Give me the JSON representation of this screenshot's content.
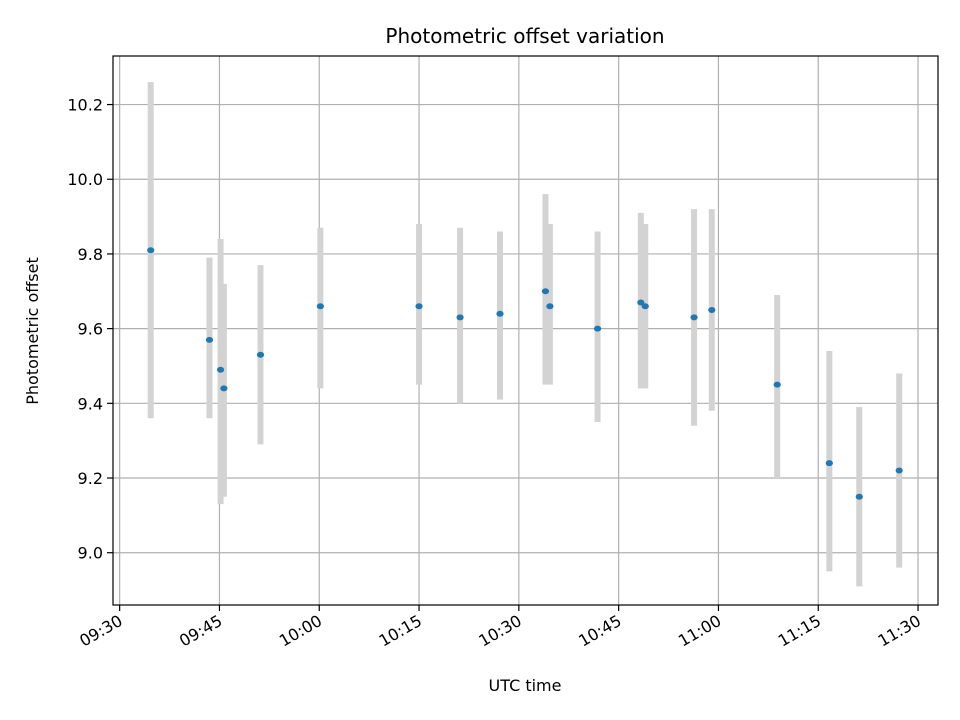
{
  "chart_data": {
    "type": "scatter",
    "title": "Photometric offset variation",
    "xlabel": "UTC time",
    "ylabel": "Photometric offset",
    "x_ticks": [
      "09:30",
      "09:45",
      "10:00",
      "10:15",
      "10:30",
      "10:45",
      "11:00",
      "11:15",
      "11:30"
    ],
    "y_ticks": [
      "9.0",
      "9.2",
      "9.4",
      "9.6",
      "9.8",
      "10.0",
      "10.2"
    ],
    "xlim": [
      "09:29",
      "11:33"
    ],
    "ylim": [
      8.86,
      10.33
    ],
    "grid": true,
    "colors": {
      "point": "#1f77b4",
      "errorbar": "#d3d3d3",
      "grid": "#b0b0b0"
    },
    "series": [
      {
        "points": [
          {
            "x": "09:34:40",
            "y": 9.81,
            "yerr_low": 9.36,
            "yerr_high": 10.26
          },
          {
            "x": "09:43:30",
            "y": 9.57,
            "yerr_low": 9.36,
            "yerr_high": 9.79
          },
          {
            "x": "09:45:10",
            "y": 9.49,
            "yerr_low": 9.13,
            "yerr_high": 9.84
          },
          {
            "x": "09:45:40",
            "y": 9.44,
            "yerr_low": 9.15,
            "yerr_high": 9.72
          },
          {
            "x": "09:51:10",
            "y": 9.53,
            "yerr_low": 9.29,
            "yerr_high": 9.77
          },
          {
            "x": "10:00:10",
            "y": 9.66,
            "yerr_low": 9.44,
            "yerr_high": 9.87
          },
          {
            "x": "10:15:00",
            "y": 9.66,
            "yerr_low": 9.45,
            "yerr_high": 9.88
          },
          {
            "x": "10:21:10",
            "y": 9.63,
            "yerr_low": 9.4,
            "yerr_high": 9.87
          },
          {
            "x": "10:27:10",
            "y": 9.64,
            "yerr_low": 9.41,
            "yerr_high": 9.86
          },
          {
            "x": "10:34:00",
            "y": 9.7,
            "yerr_low": 9.45,
            "yerr_high": 9.96
          },
          {
            "x": "10:34:40",
            "y": 9.66,
            "yerr_low": 9.45,
            "yerr_high": 9.88
          },
          {
            "x": "10:41:50",
            "y": 9.6,
            "yerr_low": 9.35,
            "yerr_high": 9.86
          },
          {
            "x": "10:48:20",
            "y": 9.67,
            "yerr_low": 9.44,
            "yerr_high": 9.91
          },
          {
            "x": "10:49:00",
            "y": 9.66,
            "yerr_low": 9.44,
            "yerr_high": 9.88
          },
          {
            "x": "10:56:20",
            "y": 9.63,
            "yerr_low": 9.34,
            "yerr_high": 9.92
          },
          {
            "x": "10:59:00",
            "y": 9.65,
            "yerr_low": 9.38,
            "yerr_high": 9.92
          },
          {
            "x": "11:08:50",
            "y": 9.45,
            "yerr_low": 9.2,
            "yerr_high": 9.69
          },
          {
            "x": "11:16:40",
            "y": 9.24,
            "yerr_low": 8.95,
            "yerr_high": 9.54
          },
          {
            "x": "11:21:10",
            "y": 9.15,
            "yerr_low": 8.91,
            "yerr_high": 9.39
          },
          {
            "x": "11:27:10",
            "y": 9.22,
            "yerr_low": 8.96,
            "yerr_high": 9.48
          }
        ]
      }
    ]
  }
}
